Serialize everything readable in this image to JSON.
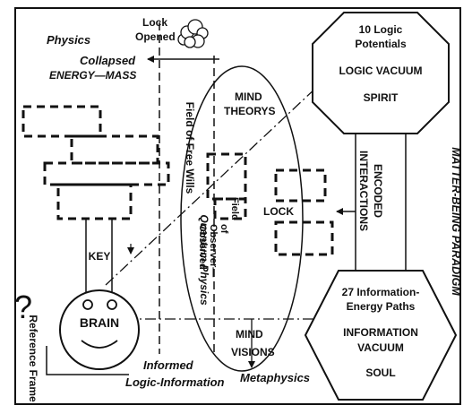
{
  "labels": {
    "lock_opened_1": "Lock",
    "lock_opened_2": "Opened",
    "physics": "Physics",
    "collapsed": "Collapsed",
    "energy_mass": "ENERGY—MASS",
    "octagon_1": "10 Logic",
    "octagon_2": "Potentials",
    "logic_vacuum": "LOGIC VACUUM",
    "spirit": "SPIRIT",
    "paradigm": "MATTER-BEING PARADIGM",
    "encoded_interactions_1": "ENCODED",
    "encoded_interactions_2": "INTERACTIONS",
    "mind_top": "MIND",
    "theorys": "THEORYS",
    "field_free_wills": "Field of Free Wills",
    "quantum_physics": "Quantum Physics",
    "field_observer_1": "Field",
    "field_observer_2": "of",
    "field_observer_3": "Observer—",
    "field_observer_4": "Observed",
    "lock": "LOCK",
    "key": "KEY",
    "question_mark": "?",
    "brain": "BRAIN",
    "reference_frame": "Reference Frame",
    "mind_bottom": "MIND",
    "visions": "VISIONS",
    "hexagon_1": "27 Information-",
    "hexagon_2": "Energy Paths",
    "information_vacuum_1": "INFORMATION",
    "information_vacuum_2": "VACUUM",
    "soul": "SOUL",
    "informed_1": "Informed",
    "informed_2": "Logic-Information",
    "metaphysics": "Metaphysics"
  }
}
